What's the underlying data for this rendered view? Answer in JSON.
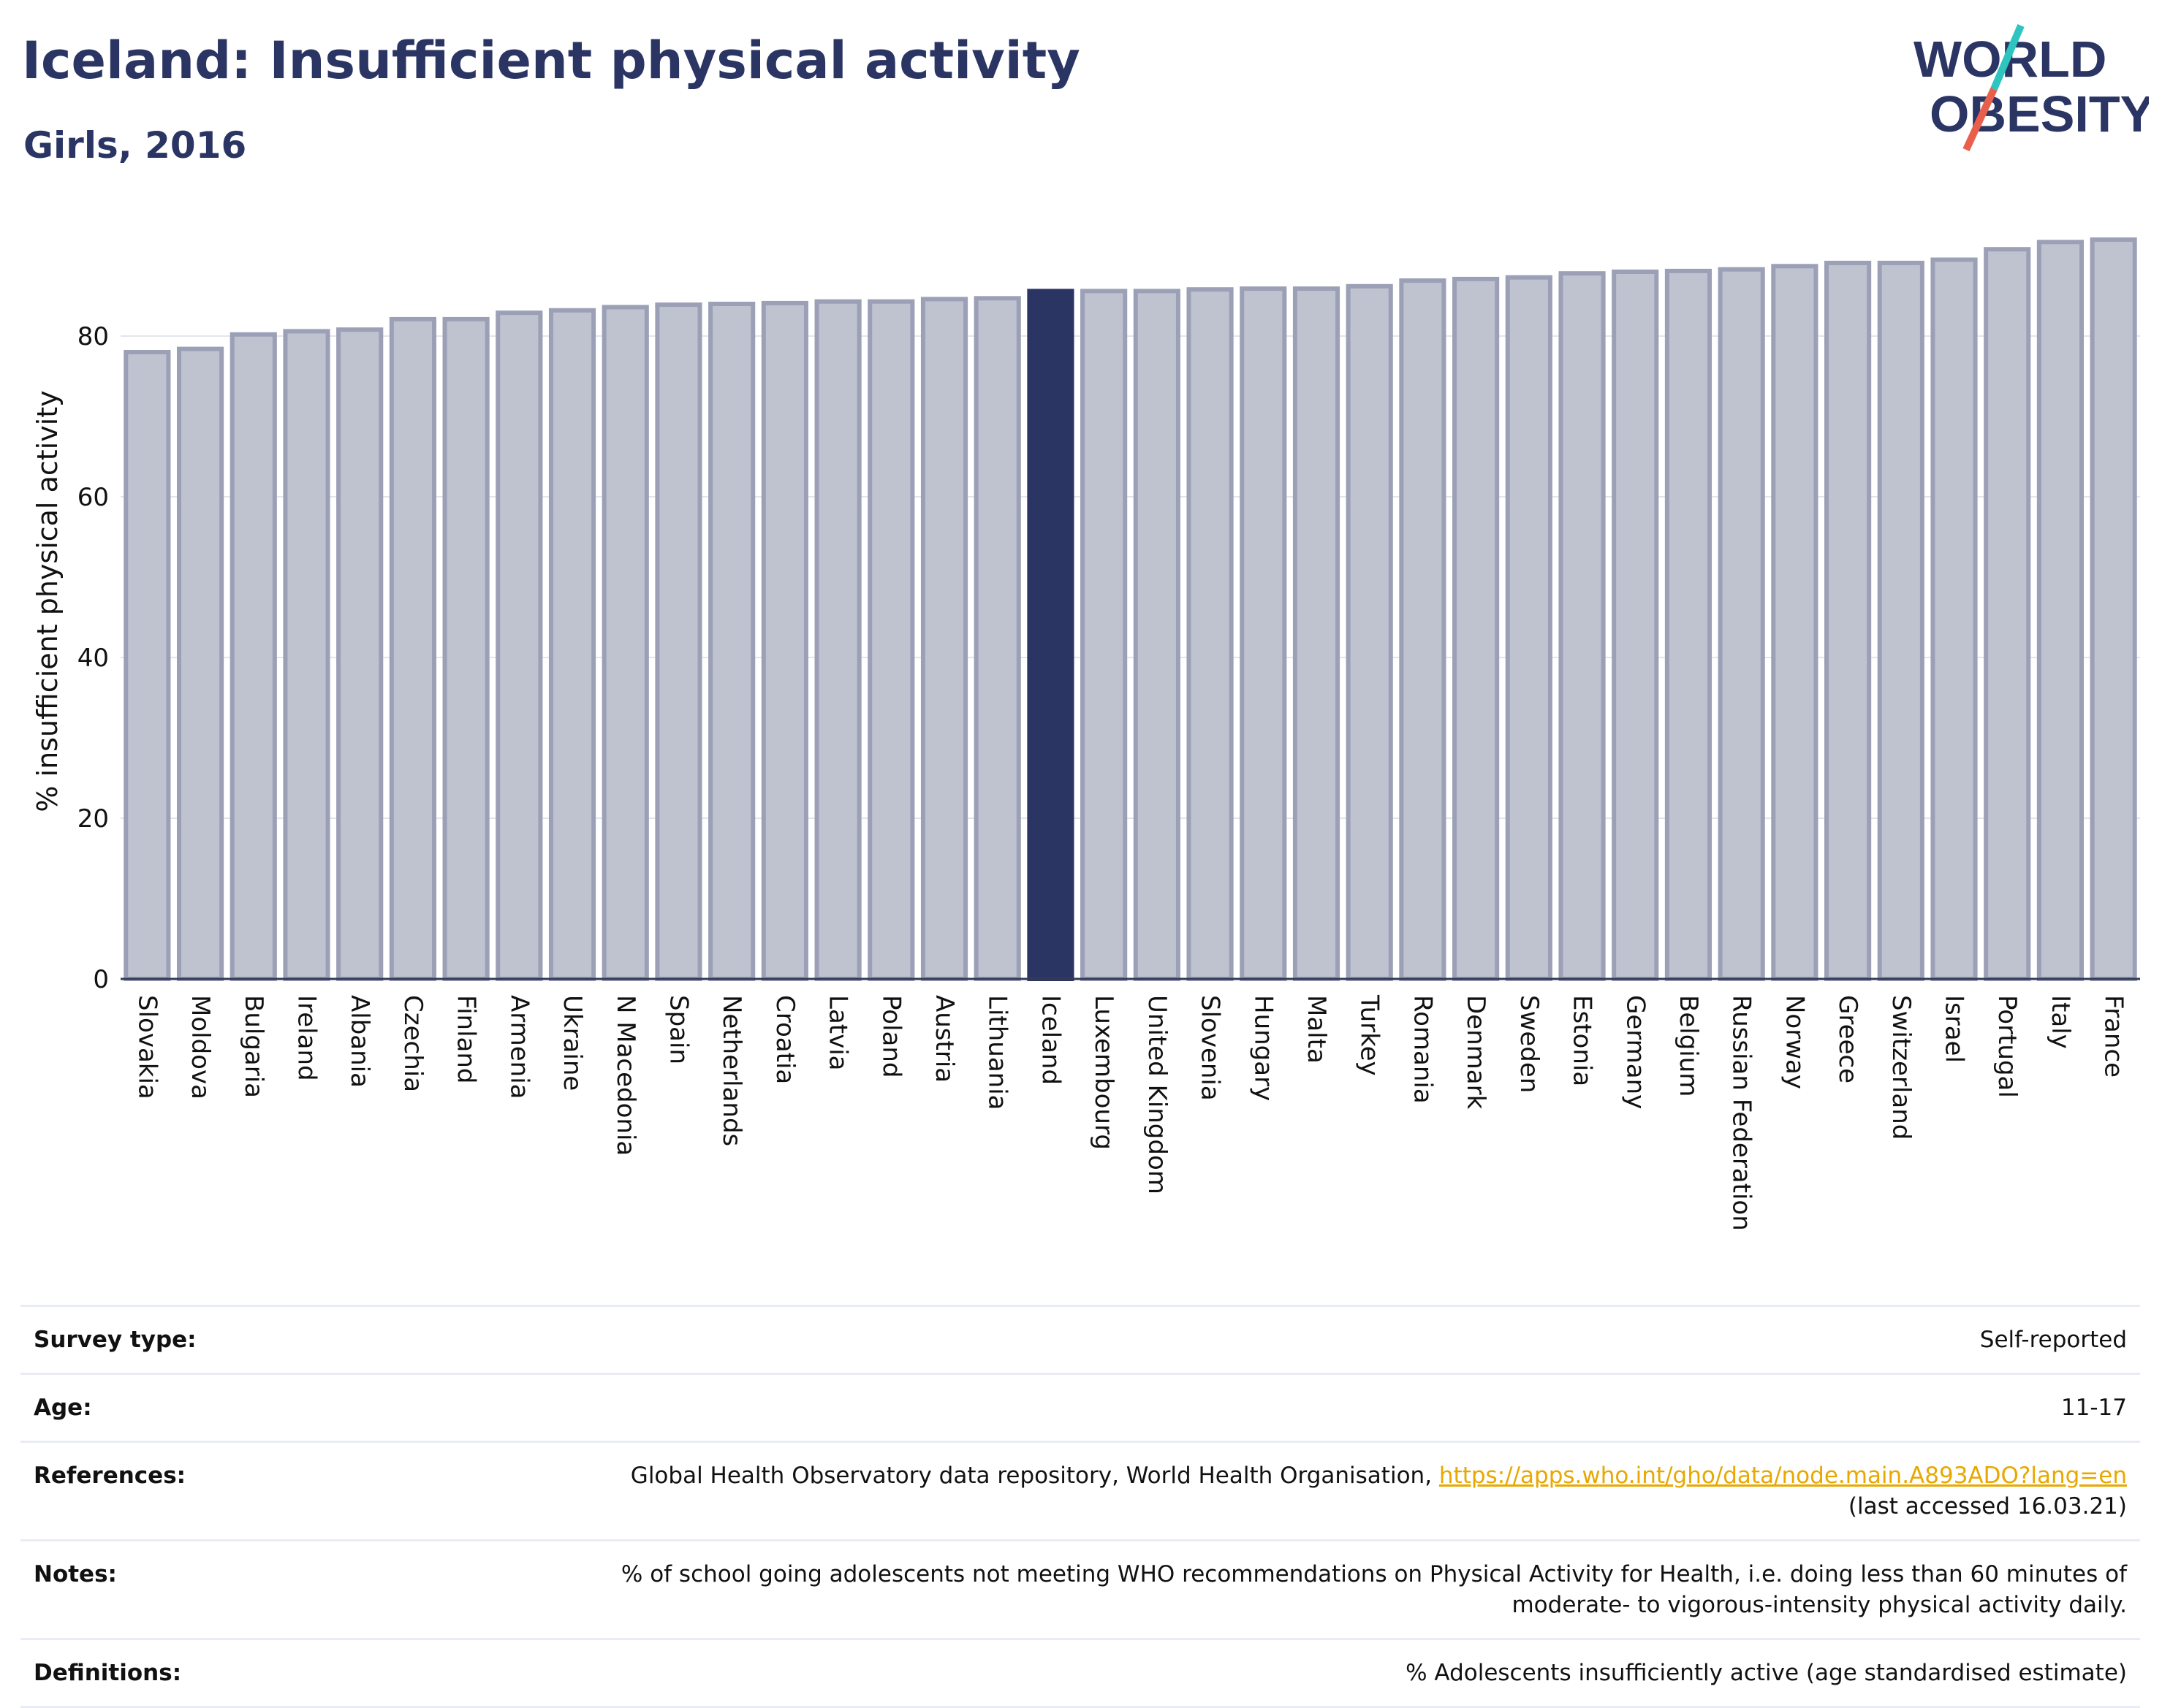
{
  "header": {
    "title": "Iceland: Insufficient physical activity",
    "subtitle": "Girls, 2016"
  },
  "logo": {
    "line1": "WORLD",
    "line2": "OBESITY",
    "colors": {
      "text": "#2b3564",
      "slash_top": "#2ec4c0",
      "slash_bottom": "#e8604c"
    }
  },
  "colors": {
    "bar_fill": "#bfc2cf",
    "bar_border": "#9ba0b6",
    "highlight_fill": "#2b3564",
    "axis_text": "#111111",
    "grid": "#e3e5ec"
  },
  "chart_data": {
    "type": "bar",
    "ylabel": "% insufficient physical activity",
    "ylim": [
      0,
      95
    ],
    "yticks": [
      0,
      20,
      40,
      60,
      80
    ],
    "highlight": "Iceland",
    "categories": [
      "Slovakia",
      "Moldova",
      "Bulgaria",
      "Ireland",
      "Albania",
      "Czechia",
      "Finland",
      "Armenia",
      "Ukraine",
      "N Macedonia",
      "Spain",
      "Netherlands",
      "Croatia",
      "Latvia",
      "Poland",
      "Austria",
      "Lithuania",
      "Iceland",
      "Luxembourg",
      "United Kingdom",
      "Slovenia",
      "Hungary",
      "Malta",
      "Turkey",
      "Romania",
      "Denmark",
      "Sweden",
      "Estonia",
      "Germany",
      "Belgium",
      "Russian Federation",
      "Norway",
      "Greece",
      "Switzerland",
      "Israel",
      "Portugal",
      "Italy",
      "France"
    ],
    "values": [
      78.0,
      78.4,
      80.2,
      80.6,
      80.8,
      82.1,
      82.1,
      82.9,
      83.2,
      83.6,
      83.9,
      84.0,
      84.1,
      84.3,
      84.3,
      84.6,
      84.7,
      85.6,
      85.6,
      85.6,
      85.8,
      85.9,
      85.9,
      86.2,
      86.9,
      87.1,
      87.3,
      87.8,
      88.0,
      88.1,
      88.3,
      88.7,
      89.1,
      89.1,
      89.5,
      90.8,
      91.7,
      92.0
    ]
  },
  "meta": {
    "rows": [
      {
        "label": "Survey type:",
        "value": "Self-reported"
      },
      {
        "label": "Age:",
        "value": "11-17"
      },
      {
        "label": "References:",
        "value": "Global Health Observatory data repository, World Health Organisation,",
        "link": "https://apps.who.int/gho/data/node.main.A893ADO?lang=en",
        "value2": "(last accessed 16.03.21)"
      },
      {
        "label": "Notes:",
        "value": "% of school going adolescents not meeting WHO recommendations on Physical Activity for Health, i.e. doing less than 60 minutes of moderate- to vigorous-intensity physical activity daily."
      },
      {
        "label": "Definitions:",
        "value": "% Adolescents insufficiently active (age standardised estimate)"
      }
    ]
  }
}
